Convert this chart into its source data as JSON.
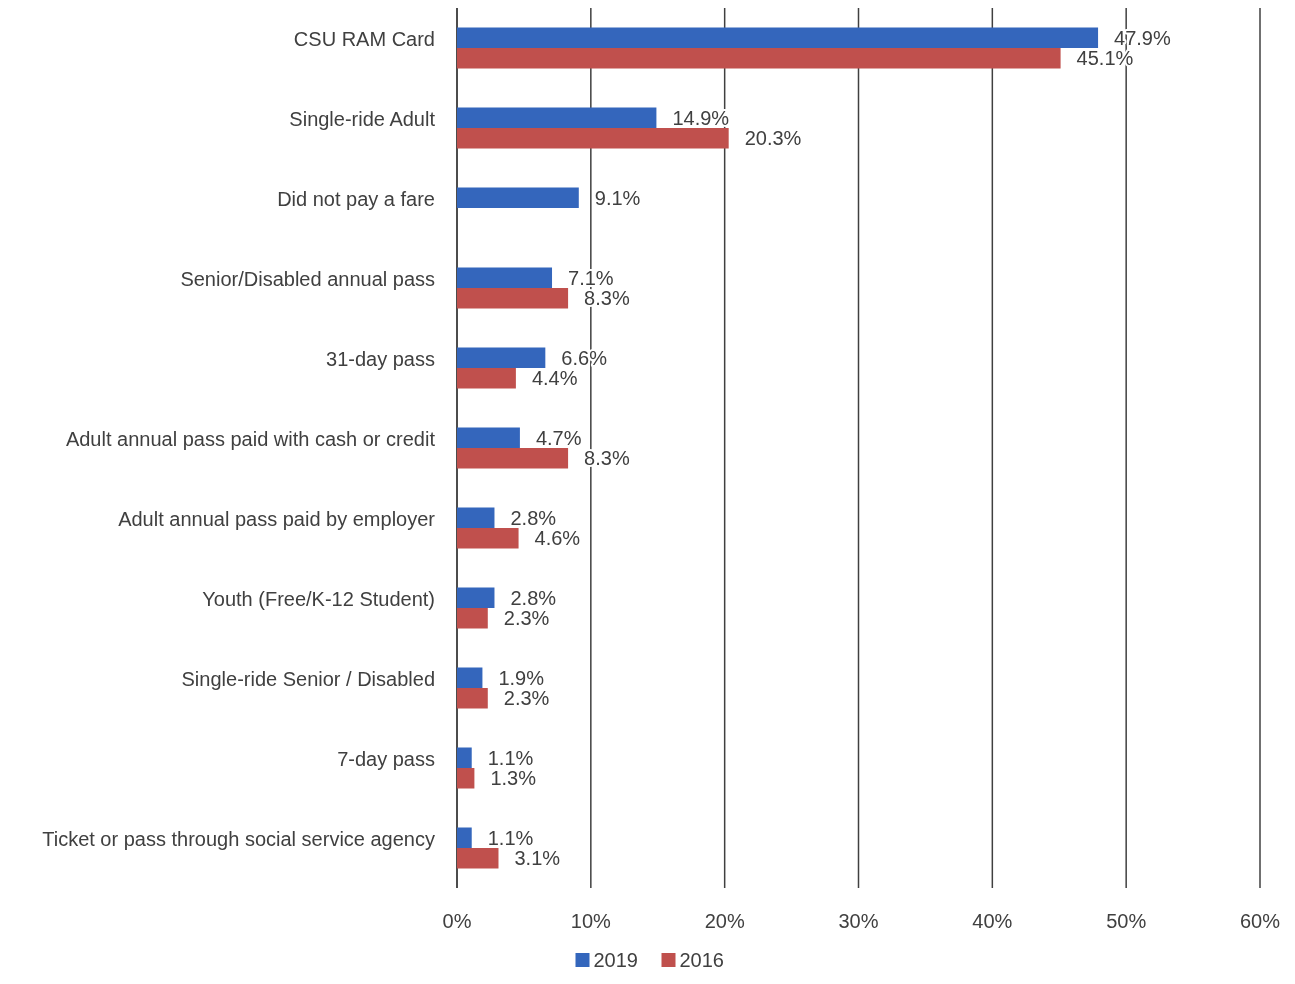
{
  "chart_data": {
    "type": "bar",
    "orientation": "horizontal",
    "categories": [
      "CSU RAM Card",
      "Single-ride Adult",
      "Did not pay a fare",
      "Senior/Disabled annual pass",
      "31-day pass",
      "Adult annual pass paid with cash or credit",
      "Adult annual pass paid by employer",
      "Youth (Free/K-12 Student)",
      "Single-ride Senior / Disabled",
      "7-day pass",
      "Ticket or pass through social service agency"
    ],
    "series": [
      {
        "name": "2019",
        "color": "#3466bc",
        "values": [
          47.9,
          14.9,
          9.1,
          7.1,
          6.6,
          4.7,
          2.8,
          2.8,
          1.9,
          1.1,
          1.1
        ],
        "value_labels": [
          "47.9%",
          "14.9%",
          "9.1%",
          "7.1%",
          "6.6%",
          "4.7%",
          "2.8%",
          "2.8%",
          "1.9%",
          "1.1%",
          "1.1%"
        ]
      },
      {
        "name": "2016",
        "color": "#c0504d",
        "values": [
          45.1,
          20.3,
          null,
          8.3,
          4.4,
          8.3,
          4.6,
          2.3,
          2.3,
          1.3,
          3.1
        ],
        "value_labels": [
          "45.1%",
          "20.3%",
          null,
          "8.3%",
          "4.4%",
          "8.3%",
          "4.6%",
          "2.3%",
          "2.3%",
          "1.3%",
          "3.1%"
        ]
      }
    ],
    "xlim": [
      0,
      60
    ],
    "xticks": [
      {
        "value": 0,
        "label": "0%"
      },
      {
        "value": 10,
        "label": "10%"
      },
      {
        "value": 20,
        "label": "20%"
      },
      {
        "value": 30,
        "label": "30%"
      },
      {
        "value": 40,
        "label": "40%"
      },
      {
        "value": 50,
        "label": "50%"
      },
      {
        "value": 60,
        "label": "60%"
      }
    ],
    "grid": "x",
    "legend": "bottom"
  }
}
